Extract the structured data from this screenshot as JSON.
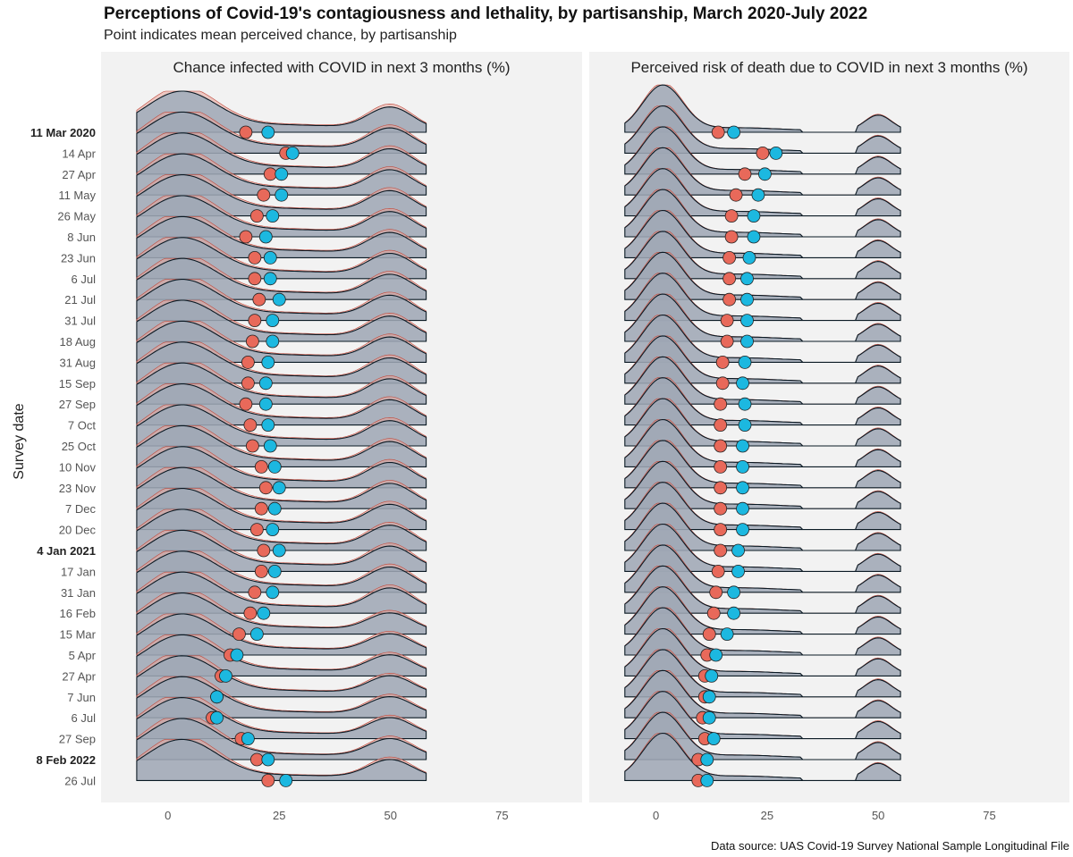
{
  "header": {
    "title": "Perceptions of Covid-19's contagiousness and lethality, by partisanship, March 2020-July 2022",
    "subtitle": "Point indicates mean perceived chance, by partisanship"
  },
  "caption": "Data source: UAS Covid-19 Survey National Sample Longitudinal File",
  "chart_data": {
    "type": "ridgeline",
    "ylabel": "Survey date",
    "colors": {
      "series_a": "#e8695a",
      "series_b": "#1cb8e0",
      "ridge_fill": "#8fa8ba",
      "ridge_overlay_a": "#e8a49a",
      "panel_bg": "#f2f2f2"
    },
    "dates": [
      "11 Mar 2020",
      "14 Apr",
      "27 Apr",
      "11 May",
      "26 May",
      "8 Jun",
      "23 Jun",
      "6 Jul",
      "21 Jul",
      "31 Jul",
      "18 Aug",
      "31 Aug",
      "15 Sep",
      "27 Sep",
      "7 Oct",
      "25 Oct",
      "10 Nov",
      "23 Nov",
      "7 Dec",
      "20 Dec",
      "4 Jan 2021",
      "17 Jan",
      "31 Jan",
      "16 Feb",
      "15 Mar",
      "5 Apr",
      "27 Apr",
      "7 Jun",
      "6 Jul",
      "27 Sep",
      "8 Feb 2022",
      "26 Jul"
    ],
    "bold_dates": [
      "11 Mar 2020",
      "4 Jan 2021",
      "8 Feb 2022"
    ],
    "panels": [
      {
        "title": "Chance infected with COVID in next 3 months (%)",
        "xticks": [
          0,
          25,
          50,
          75
        ],
        "xlim": [
          -15,
          93
        ],
        "series_a_means": [
          17.5,
          26.5,
          23,
          21.5,
          20,
          17.5,
          19.5,
          19.5,
          20.5,
          19.5,
          19,
          18,
          18,
          17.5,
          18.5,
          19,
          21,
          22,
          21,
          20,
          21.5,
          21,
          19.5,
          18.5,
          16,
          14,
          12,
          11,
          10,
          16.5,
          20,
          22.5
        ],
        "series_b_means": [
          22.5,
          28,
          25.5,
          25.5,
          23.5,
          22,
          23,
          23,
          25,
          23.5,
          23.5,
          22.5,
          22,
          22,
          22.5,
          23,
          24,
          25,
          24,
          23.5,
          25,
          24,
          23.5,
          21.5,
          20,
          15.5,
          13,
          11,
          11,
          18,
          22.5,
          26.5
        ]
      },
      {
        "title": "Perceived risk of death due to COVID in next 3 months (%)",
        "xticks": [
          0,
          25,
          50,
          75
        ],
        "xlim": [
          -15,
          93
        ],
        "series_a_means": [
          14,
          24,
          20,
          18,
          17,
          17,
          16.5,
          16.5,
          16.5,
          16,
          16,
          15,
          15,
          14.5,
          14.5,
          14.5,
          14.5,
          14.5,
          14.5,
          14.5,
          14.5,
          14,
          13.5,
          13,
          12,
          11.5,
          11,
          11,
          10.5,
          11,
          9.5,
          9.5
        ],
        "series_b_means": [
          17.5,
          27,
          24.5,
          23,
          22,
          22,
          21,
          20.5,
          20.5,
          20.5,
          20.5,
          20,
          19.5,
          20,
          20,
          19.5,
          19.5,
          19.5,
          19.5,
          19.5,
          18.5,
          18.5,
          17.5,
          17.5,
          16,
          13.5,
          12.5,
          12,
          12,
          13,
          11.5,
          11.5
        ]
      }
    ]
  }
}
